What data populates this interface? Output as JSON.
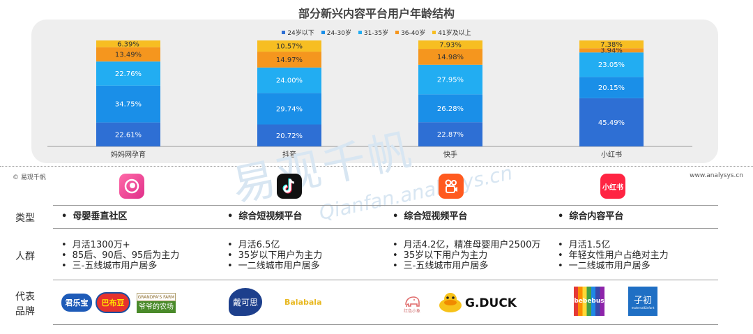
{
  "title": "部分新兴内容平台用户年龄结构",
  "footer": {
    "copyright": "© 易观千帆",
    "site": "www.analysys.cn"
  },
  "watermark": {
    "main": "易观千帆",
    "sub": "Qianfan.analysys.cn"
  },
  "colors": {
    "s1": "#2e6fd4",
    "s2": "#1a8fe8",
    "s3": "#22adf2",
    "s4": "#f5961e",
    "s5": "#f7be22",
    "panel": "#eeeeee"
  },
  "chart_data": {
    "type": "bar",
    "stacked": true,
    "title": "部分新兴内容平台用户年龄结构",
    "categories": [
      "妈妈网孕育",
      "抖音",
      "快手",
      "小红书"
    ],
    "series": [
      {
        "name": "24岁以下",
        "values": [
          22.61,
          20.72,
          22.87,
          45.49
        ],
        "color": "#2e6fd4"
      },
      {
        "name": "24-30岁",
        "values": [
          34.75,
          29.74,
          26.28,
          20.15
        ],
        "color": "#1a8fe8"
      },
      {
        "name": "31-35岁",
        "values": [
          22.76,
          24.0,
          27.95,
          23.05
        ],
        "color": "#22adf2"
      },
      {
        "name": "36-40岁",
        "values": [
          13.49,
          14.97,
          14.98,
          3.94
        ],
        "color": "#f5961e"
      },
      {
        "name": "41岁及以上",
        "values": [
          6.39,
          10.57,
          7.93,
          7.38
        ],
        "color": "#f7be22"
      }
    ],
    "value_format": "%",
    "legend_position": "top"
  },
  "table": {
    "row_labels": {
      "type": "类型",
      "users": "人群",
      "brands_1": "代表",
      "brands_2": "品牌"
    },
    "columns": [
      {
        "app_icon": "mama-icon",
        "type": "母婴垂直社区",
        "users": [
          "月活1300万+",
          "85后、90后、95后为主力",
          "三-五线城市用户居多"
        ],
        "brands": [
          "君乐宝",
          "巴布豆",
          "GRANDPA'S FARM",
          "爷爷的农场"
        ]
      },
      {
        "app_icon": "douyin-icon",
        "type": "综合短视频平台",
        "users": [
          "月活6.5亿",
          "35岁以下用户为主力",
          "一二线城市用户居多"
        ],
        "brands": [
          "戴可思",
          "Balabala"
        ]
      },
      {
        "app_icon": "kuaishou-icon",
        "type": "综合短视频平台",
        "users": [
          "月活4.2亿，精准母婴用户2500万",
          "35岁以下用户为主力",
          "三-五线城市用户居多"
        ],
        "brands": [
          "红色小象",
          "G.DUCK"
        ]
      },
      {
        "app_icon": "xiaohongshu-icon",
        "icon_text": "小红书",
        "type": "综合内容平台",
        "users": [
          "月活1.5亿",
          "年轻女性用户占绝对主力",
          "一二线城市用户居多"
        ],
        "brands": [
          "bebebus",
          "子初",
          "maternal&infant"
        ]
      }
    ]
  }
}
